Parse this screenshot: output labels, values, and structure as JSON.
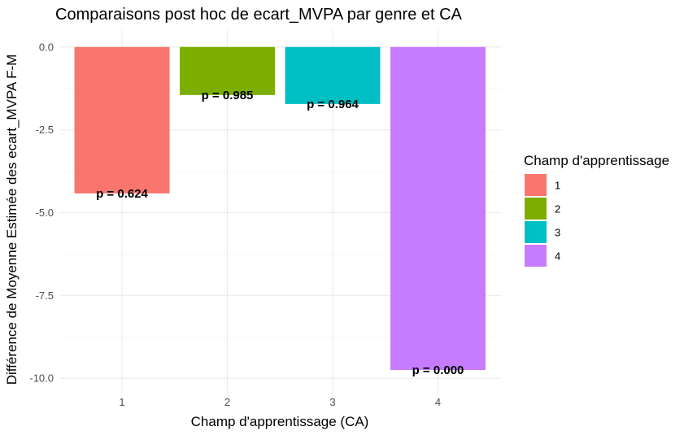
{
  "chart_data": {
    "type": "bar",
    "title": "Comparaisons post hoc de ecart_MVPA par genre et CA",
    "xlabel": "Champ d'apprentissage (CA)",
    "ylabel": "Différence de Moyenne Estimée des ecart_MVPA F-M",
    "categories": [
      "1",
      "2",
      "3",
      "4"
    ],
    "values": [
      -4.42,
      -1.45,
      -1.72,
      -9.75
    ],
    "data_labels": [
      "p = 0.624",
      "p = 0.985",
      "p = 0.964",
      "p = 0.000"
    ],
    "colors": [
      "#F8766D",
      "#7CAE00",
      "#00BFC4",
      "#C77CFF"
    ],
    "ylim": [
      -10.5,
      0.3
    ],
    "yticks": [
      0.0,
      -2.5,
      -5.0,
      -7.5,
      -10.0
    ],
    "ytick_labels": [
      "0.0",
      "-2.5",
      "-5.0",
      "-7.5",
      "-10.0"
    ],
    "grid": true,
    "legend": {
      "title": "Champ d'apprentissage",
      "position": "right",
      "labels": [
        "1",
        "2",
        "3",
        "4"
      ]
    }
  }
}
